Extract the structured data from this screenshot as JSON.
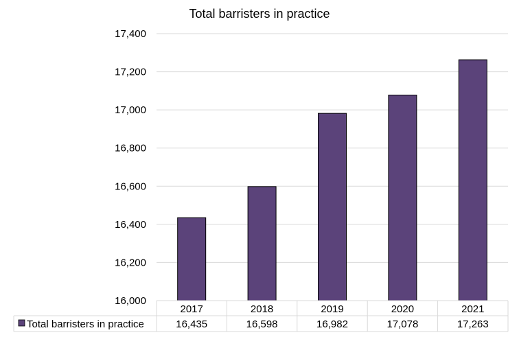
{
  "chart_data": {
    "type": "bar",
    "title": "Total barristers in practice",
    "categories": [
      "2017",
      "2018",
      "2019",
      "2020",
      "2021"
    ],
    "series": [
      {
        "name": "Total barristers in practice",
        "values": [
          16435,
          16598,
          16982,
          17078,
          17263
        ]
      }
    ],
    "value_labels": [
      "16,435",
      "16,598",
      "16,982",
      "17,078",
      "17,263"
    ],
    "ylim": [
      16000,
      17400
    ],
    "yticks": [
      16000,
      16200,
      16400,
      16600,
      16800,
      17000,
      17200,
      17400
    ],
    "ytick_labels": [
      "16,000",
      "16,200",
      "16,400",
      "16,600",
      "16,800",
      "17,000",
      "17,200",
      "17,400"
    ],
    "grid": true,
    "legend": "data-table",
    "color": "#5B437A"
  }
}
